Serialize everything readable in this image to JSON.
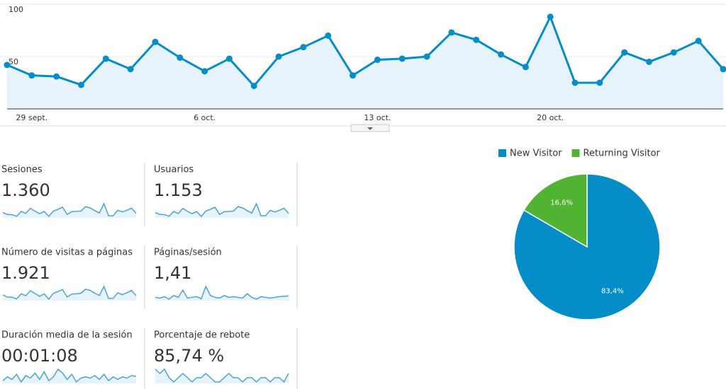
{
  "chart_data": [
    {
      "type": "line",
      "categories": [
        null,
        "29 sept.",
        null,
        null,
        null,
        null,
        null,
        null,
        "6 oct.",
        null,
        null,
        null,
        null,
        null,
        null,
        "13 oct.",
        null,
        null,
        null,
        null,
        null,
        null,
        "20 oct.",
        null,
        null,
        null,
        null,
        null,
        null,
        null
      ],
      "values": [
        42,
        32,
        31,
        23,
        48,
        38,
        64,
        49,
        36,
        48,
        22,
        50,
        59,
        70,
        32,
        47,
        48,
        50,
        73,
        66,
        52,
        40,
        88,
        25,
        25,
        54,
        45,
        54,
        65,
        38
      ],
      "color": "#058dc7",
      "ylim": [
        0,
        100
      ],
      "yticks": [
        50,
        100
      ],
      "grid": true
    },
    {
      "type": "pie",
      "categories": [
        "New Visitor",
        "Returning Visitor"
      ],
      "values": [
        83.4,
        16.6
      ],
      "value_labels": [
        "83,4%",
        "16,6%"
      ],
      "colors": [
        "#058dc7",
        "#50b432"
      ],
      "legend": "top"
    }
  ],
  "metrics": [
    {
      "label": "Sesiones",
      "value": "1.360",
      "trend": [
        42,
        32,
        31,
        23,
        48,
        38,
        64,
        49,
        36,
        48,
        22,
        50,
        59,
        70,
        32,
        47,
        48,
        50,
        73,
        66,
        52,
        40,
        88,
        25,
        25,
        54,
        45,
        54,
        65,
        38
      ]
    },
    {
      "label": "Usuarios",
      "value": "1.153",
      "trend": [
        36,
        28,
        27,
        20,
        41,
        32,
        55,
        42,
        31,
        41,
        19,
        43,
        51,
        60,
        28,
        40,
        41,
        43,
        63,
        57,
        45,
        34,
        76,
        22,
        22,
        46,
        39,
        46,
        56,
        33
      ]
    },
    {
      "label": "Número de visitas a páginas",
      "value": "1.921",
      "trend": [
        60,
        45,
        44,
        32,
        68,
        55,
        90,
        70,
        50,
        68,
        30,
        72,
        84,
        98,
        45,
        66,
        68,
        72,
        100,
        92,
        72,
        56,
        120,
        35,
        36,
        75,
        62,
        75,
        92,
        54
      ]
    },
    {
      "label": "Páginas/sesión",
      "value": "1,41",
      "trend": [
        1.4,
        1.38,
        1.42,
        1.35,
        1.45,
        1.4,
        1.6,
        1.38,
        1.4,
        1.42,
        1.36,
        1.7,
        1.45,
        1.4,
        1.38,
        1.45,
        1.4,
        1.42,
        1.4,
        1.38,
        1.5,
        1.4,
        1.35,
        1.42,
        1.4,
        1.38,
        1.4,
        1.42,
        1.43,
        1.44
      ]
    },
    {
      "label": "Duración media de la sesión",
      "value": "00:01:08",
      "trend": [
        55,
        70,
        60,
        80,
        50,
        75,
        65,
        85,
        60,
        90,
        55,
        70,
        100,
        85,
        60,
        80,
        50,
        65,
        70,
        65,
        75,
        60,
        80,
        55,
        70,
        60,
        70,
        65,
        75,
        72
      ]
    },
    {
      "label": "Porcentaje de rebote",
      "value": "85,74 %",
      "trend": [
        88,
        87,
        88,
        86,
        85,
        86,
        87,
        86,
        85,
        86,
        86,
        87,
        86,
        85,
        85,
        86,
        87,
        86,
        86,
        85,
        86,
        86,
        85,
        86,
        86,
        85,
        86,
        86,
        85,
        87
      ]
    }
  ]
}
